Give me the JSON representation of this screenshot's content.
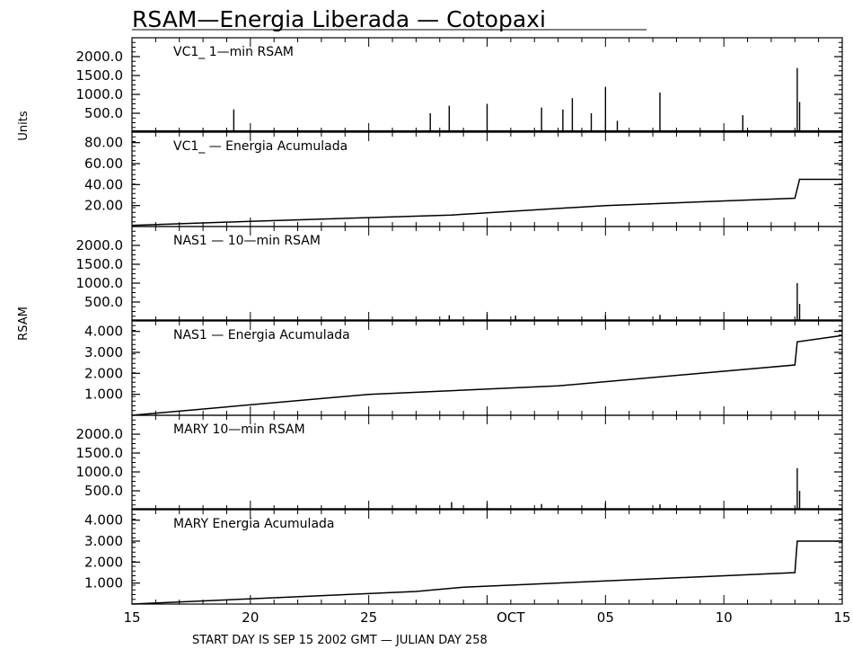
{
  "chart_data": {
    "type": "line",
    "title": "RSAM—Energia Liberada — Cotopaxi",
    "footer": "START DAY IS SEP 15 2002 GMT   — JULIAN DAY 258",
    "side_labels": [
      "Units",
      "RSAM"
    ],
    "x_axis": {
      "start_date": "2002-09-15",
      "domain_days": [
        0,
        30
      ],
      "tick_labels": [
        {
          "day": 0,
          "label": "15"
        },
        {
          "day": 5,
          "label": "20"
        },
        {
          "day": 10,
          "label": "25"
        },
        {
          "day": 16,
          "label": "OCT"
        },
        {
          "day": 20,
          "label": "05"
        },
        {
          "day": 25,
          "label": "10"
        },
        {
          "day": 30,
          "label": "15"
        }
      ]
    },
    "panels": [
      {
        "label": "VC1_  1—min RSAM",
        "kind": "rsam",
        "ylim": [
          0,
          2500
        ],
        "ytick_labels": [
          "2000.0",
          "1500.0",
          "1000.0",
          "500.0"
        ],
        "yticks": [
          2000,
          1500,
          1000,
          500
        ],
        "baseline": 50,
        "spikes": [
          [
            4.3,
            600
          ],
          [
            12.6,
            500
          ],
          [
            13.4,
            700
          ],
          [
            15.0,
            750
          ],
          [
            17.3,
            650
          ],
          [
            18.2,
            600
          ],
          [
            18.6,
            900
          ],
          [
            19.4,
            500
          ],
          [
            20.0,
            1200
          ],
          [
            20.5,
            300
          ],
          [
            22.3,
            1050
          ],
          [
            25.8,
            450
          ],
          [
            28.1,
            1700
          ],
          [
            28.2,
            800
          ]
        ]
      },
      {
        "label": "VC1_  — Energia Acumulada",
        "kind": "cumulative",
        "ylim": [
          0,
          90
        ],
        "ytick_labels": [
          "80.00",
          "60.00",
          "40.00",
          "20.00"
        ],
        "yticks": [
          80,
          60,
          40,
          20
        ],
        "points": [
          [
            0,
            1
          ],
          [
            5,
            5
          ],
          [
            13.5,
            11
          ],
          [
            20,
            20
          ],
          [
            28,
            27
          ],
          [
            28.2,
            45
          ],
          [
            30,
            45
          ]
        ]
      },
      {
        "label": "NAS1 — 10—min RSAM",
        "kind": "rsam",
        "ylim": [
          0,
          2500
        ],
        "ytick_labels": [
          "2000.0",
          "1500.0",
          "1000.0",
          "500.0"
        ],
        "yticks": [
          2000,
          1500,
          1000,
          500
        ],
        "baseline": 40,
        "spikes": [
          [
            13.4,
            150
          ],
          [
            15.0,
            180
          ],
          [
            16.2,
            140
          ],
          [
            20.0,
            150
          ],
          [
            22.3,
            160
          ],
          [
            28.1,
            1000
          ],
          [
            28.2,
            450
          ]
        ]
      },
      {
        "label": "NAS1 — Energia Acumulada",
        "kind": "cumulative",
        "ylim": [
          0,
          4.5
        ],
        "ytick_labels": [
          "4.000",
          "3.000",
          "2.000",
          "1.000"
        ],
        "yticks": [
          4,
          3,
          2,
          1
        ],
        "points": [
          [
            0,
            0
          ],
          [
            10,
            1.0
          ],
          [
            18,
            1.4
          ],
          [
            28,
            2.4
          ],
          [
            28.1,
            3.5
          ],
          [
            30,
            3.8
          ]
        ]
      },
      {
        "label": "MARY 10—min RSAM",
        "kind": "rsam",
        "ylim": [
          0,
          2500
        ],
        "ytick_labels": [
          "2000.0",
          "1500.0",
          "1000.0",
          "500.0"
        ],
        "yticks": [
          2000,
          1500,
          1000,
          500
        ],
        "baseline": 40,
        "spikes": [
          [
            13.5,
            200
          ],
          [
            15.0,
            160
          ],
          [
            17.3,
            150
          ],
          [
            20.0,
            170
          ],
          [
            22.3,
            140
          ],
          [
            28.1,
            1100
          ],
          [
            28.2,
            500
          ]
        ]
      },
      {
        "label": "MARY Energia Acumulada",
        "kind": "cumulative",
        "ylim": [
          0,
          4.5
        ],
        "ytick_labels": [
          "4.000",
          "3.000",
          "2.000",
          "1.000"
        ],
        "yticks": [
          4,
          3,
          2,
          1
        ],
        "points": [
          [
            0,
            0
          ],
          [
            12,
            0.6
          ],
          [
            14,
            0.8
          ],
          [
            28,
            1.5
          ],
          [
            28.1,
            3.0
          ],
          [
            30,
            3.0
          ]
        ]
      }
    ]
  }
}
